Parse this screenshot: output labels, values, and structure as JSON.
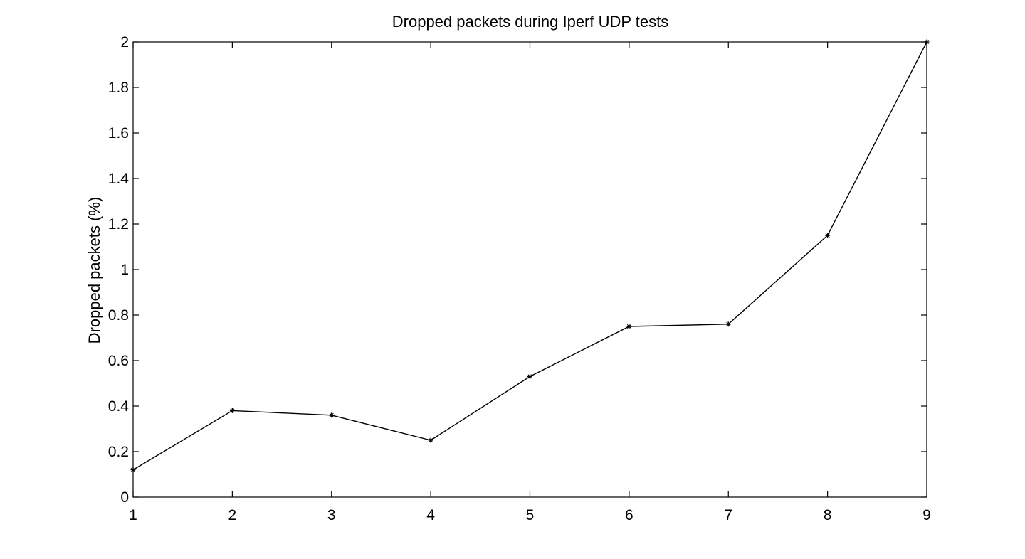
{
  "chart_data": {
    "type": "line",
    "title": "Dropped packets during Iperf UDP tests",
    "xlabel": "",
    "ylabel": "Dropped packets (%)",
    "x": [
      1,
      2,
      3,
      4,
      5,
      6,
      7,
      8,
      9
    ],
    "xlim": [
      1,
      9
    ],
    "ylim": [
      0,
      2
    ],
    "x_ticks": [
      "1",
      "2",
      "3",
      "4",
      "5",
      "6",
      "7",
      "8",
      "9"
    ],
    "y_ticks": [
      "0",
      "0.2",
      "0.4",
      "0.6",
      "0.8",
      "1",
      "1.2",
      "1.4",
      "1.6",
      "1.8",
      "2"
    ],
    "y_tick_values": [
      0,
      0.2,
      0.4,
      0.6,
      0.8,
      1.0,
      1.2,
      1.4,
      1.6,
      1.8,
      2.0
    ],
    "grid": false,
    "legend": "none",
    "series": [
      {
        "values": [
          0.12,
          0.38,
          0.36,
          0.25,
          0.53,
          0.75,
          0.76,
          1.15,
          2.0
        ],
        "color": "#000000",
        "marker": "asterisk"
      }
    ]
  }
}
